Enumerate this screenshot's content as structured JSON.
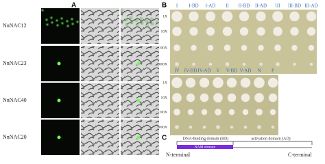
{
  "panel_a": {
    "label": "A",
    "rows": [
      "NnNAC12",
      "NnNAC23",
      "NnNAC40",
      "NnNAC20"
    ]
  },
  "panel_b": {
    "label": "B",
    "plate_1": {
      "columns": [
        "I",
        "I-BD",
        "I-AD",
        "II",
        "II-BD",
        "II-AD",
        "III",
        "III-BD",
        "III-AD"
      ],
      "rows": [
        "1X",
        "10X",
        "100X",
        "1000X"
      ]
    },
    "plate_2": {
      "columns": [
        "IV",
        "IV-BD",
        "IV-AD",
        "V",
        "V-BD",
        "V-AD",
        "N",
        "P"
      ],
      "rows": [
        "1X",
        "10X",
        "100X",
        "1000X"
      ]
    }
  },
  "panel_c": {
    "label": "C",
    "binding_domain": "DNA-binding domain (BD)",
    "activation_domain": "activation domain (AD)",
    "nam_domain": "NAM domain",
    "n_terminal": "N-terminal",
    "c_terminal": "C-terminal"
  }
}
